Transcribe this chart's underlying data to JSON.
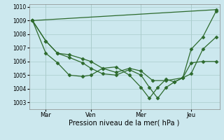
{
  "xlabel": "Pression niveau de la mer( hPa )",
  "ylim": [
    1002.5,
    1010.2
  ],
  "yticks": [
    1003,
    1004,
    1005,
    1006,
    1007,
    1008,
    1009,
    1010
  ],
  "bg_color": "#cce8ee",
  "grid_color": "#aacccc",
  "line_color": "#2d6a2d",
  "day_labels": [
    "Mar",
    "Ven",
    "Mer",
    "Jeu"
  ],
  "day_positions": [
    0.8,
    3.5,
    6.5,
    9.5
  ],
  "xlim": [
    -0.2,
    11.2
  ],
  "series_diag": {
    "x": [
      0,
      11
    ],
    "y": [
      1009.0,
      1009.8
    ]
  },
  "series_a": {
    "x": [
      0,
      0.8,
      1.5,
      2.2,
      3.0,
      3.5,
      4.2,
      5.0,
      5.8,
      6.5,
      7.2,
      8.0,
      9.0,
      9.5,
      10.2,
      11.0
    ],
    "y": [
      1009.0,
      1007.5,
      1006.6,
      1006.5,
      1006.2,
      1006.0,
      1005.5,
      1005.2,
      1005.5,
      1005.3,
      1004.6,
      1004.6,
      1004.8,
      1005.9,
      1006.0,
      1006.0
    ]
  },
  "series_b": {
    "x": [
      0,
      0.8,
      1.5,
      2.2,
      3.0,
      3.5,
      4.2,
      5.0,
      5.8,
      6.5,
      7.0,
      7.5,
      8.0,
      8.5,
      9.0,
      9.5,
      10.2,
      11.0
    ],
    "y": [
      1009.0,
      1007.5,
      1006.6,
      1006.3,
      1005.9,
      1005.5,
      1005.1,
      1005.0,
      1005.4,
      1005.0,
      1004.1,
      1003.3,
      1004.1,
      1004.5,
      1004.8,
      1005.1,
      1006.9,
      1007.8
    ]
  },
  "series_c": {
    "x": [
      0,
      0.8,
      1.5,
      2.2,
      3.0,
      3.5,
      4.2,
      5.0,
      5.8,
      6.5,
      7.0,
      7.5,
      8.0,
      8.5,
      9.0,
      9.5,
      10.2,
      11.0
    ],
    "y": [
      1009.0,
      1006.6,
      1005.9,
      1005.0,
      1004.9,
      1005.0,
      1005.5,
      1005.6,
      1005.0,
      1004.1,
      1003.3,
      1004.1,
      1004.7,
      1004.5,
      1004.8,
      1006.9,
      1007.8,
      1009.7
    ]
  }
}
